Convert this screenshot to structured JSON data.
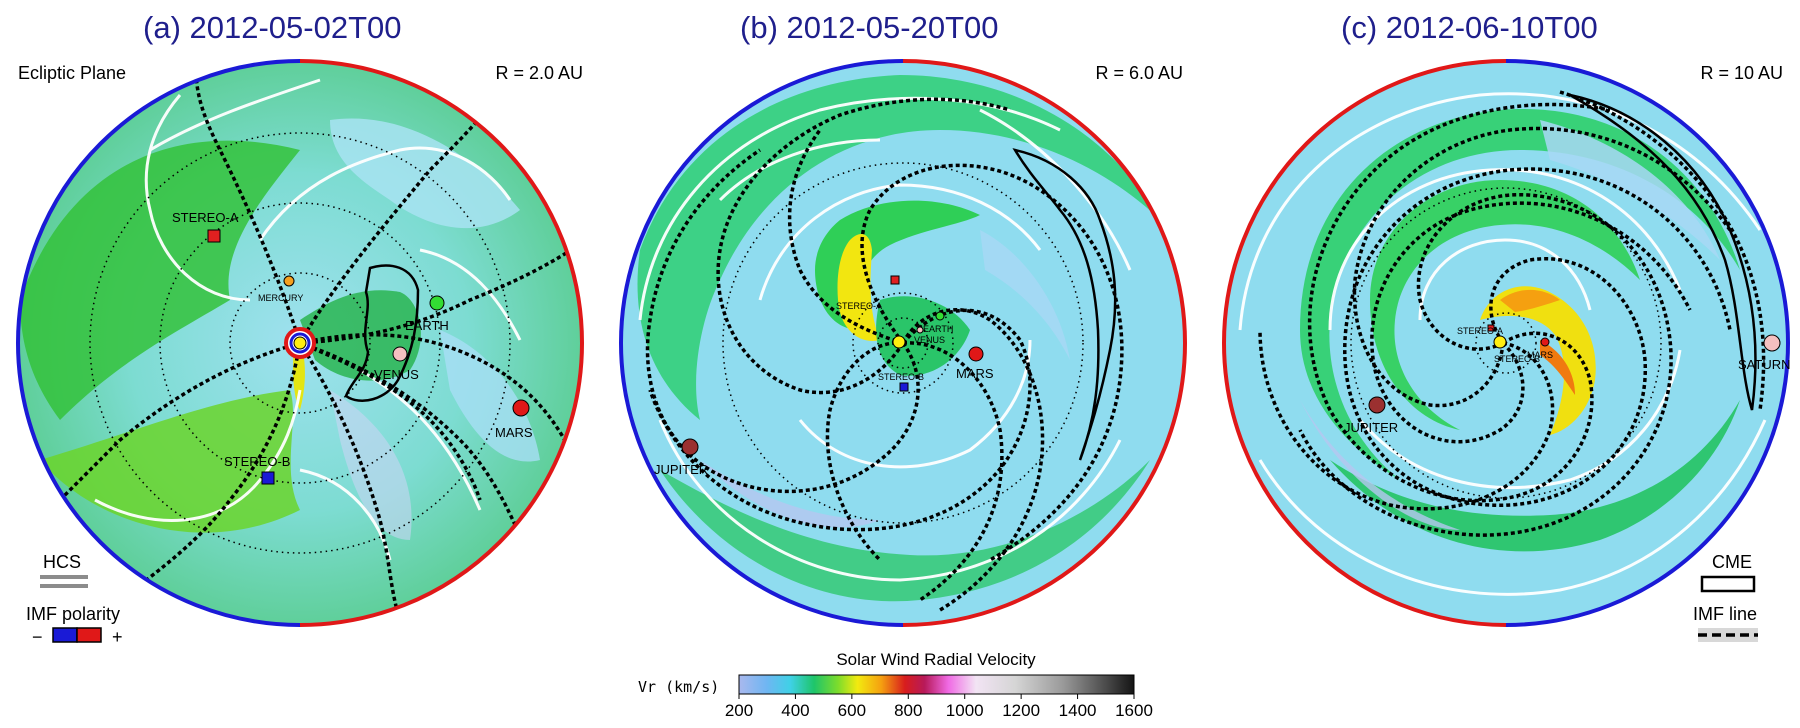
{
  "panels": [
    {
      "title": "(a)  2012-05-02T00",
      "range": "R = 2.0 AU",
      "corner_note": "Ecliptic Plane",
      "bodies": [
        "STEREO-A",
        "MERCURY",
        "EARTH",
        "VENUS",
        "MARS",
        "STEREO-B"
      ]
    },
    {
      "title": "(b)  2012-05-20T00",
      "range": "R = 6.0 AU",
      "bodies": [
        "STEREO-A",
        "EARTH",
        "VENUS",
        "STEREO-B",
        "MARS",
        "JUPITER"
      ]
    },
    {
      "title": "(c)  2012-06-10T00",
      "range": "R = 10 AU",
      "bodies": [
        "STEREO-A",
        "STEREO-B",
        "MARS",
        "JUPITER",
        "SATURN"
      ]
    }
  ],
  "legends": {
    "hcs": "HCS",
    "imf_polarity": "IMF polarity",
    "minus": "−",
    "plus": "+",
    "cme": "CME",
    "imf_line": "IMF line"
  },
  "colorbar": {
    "title": "Solar Wind Radial Velocity",
    "label": "Vr (km/s)",
    "ticks": [
      "200",
      "400",
      "600",
      "800",
      "1000",
      "1200",
      "1400",
      "1600"
    ]
  },
  "colors": {
    "title": "#1f1f8c",
    "polarity_negative": "#1a1ad6",
    "polarity_positive": "#e01818",
    "background_wind": "#8fdcef",
    "fast_wind": "#2fce57",
    "cme_wind": "#f0e010"
  }
}
